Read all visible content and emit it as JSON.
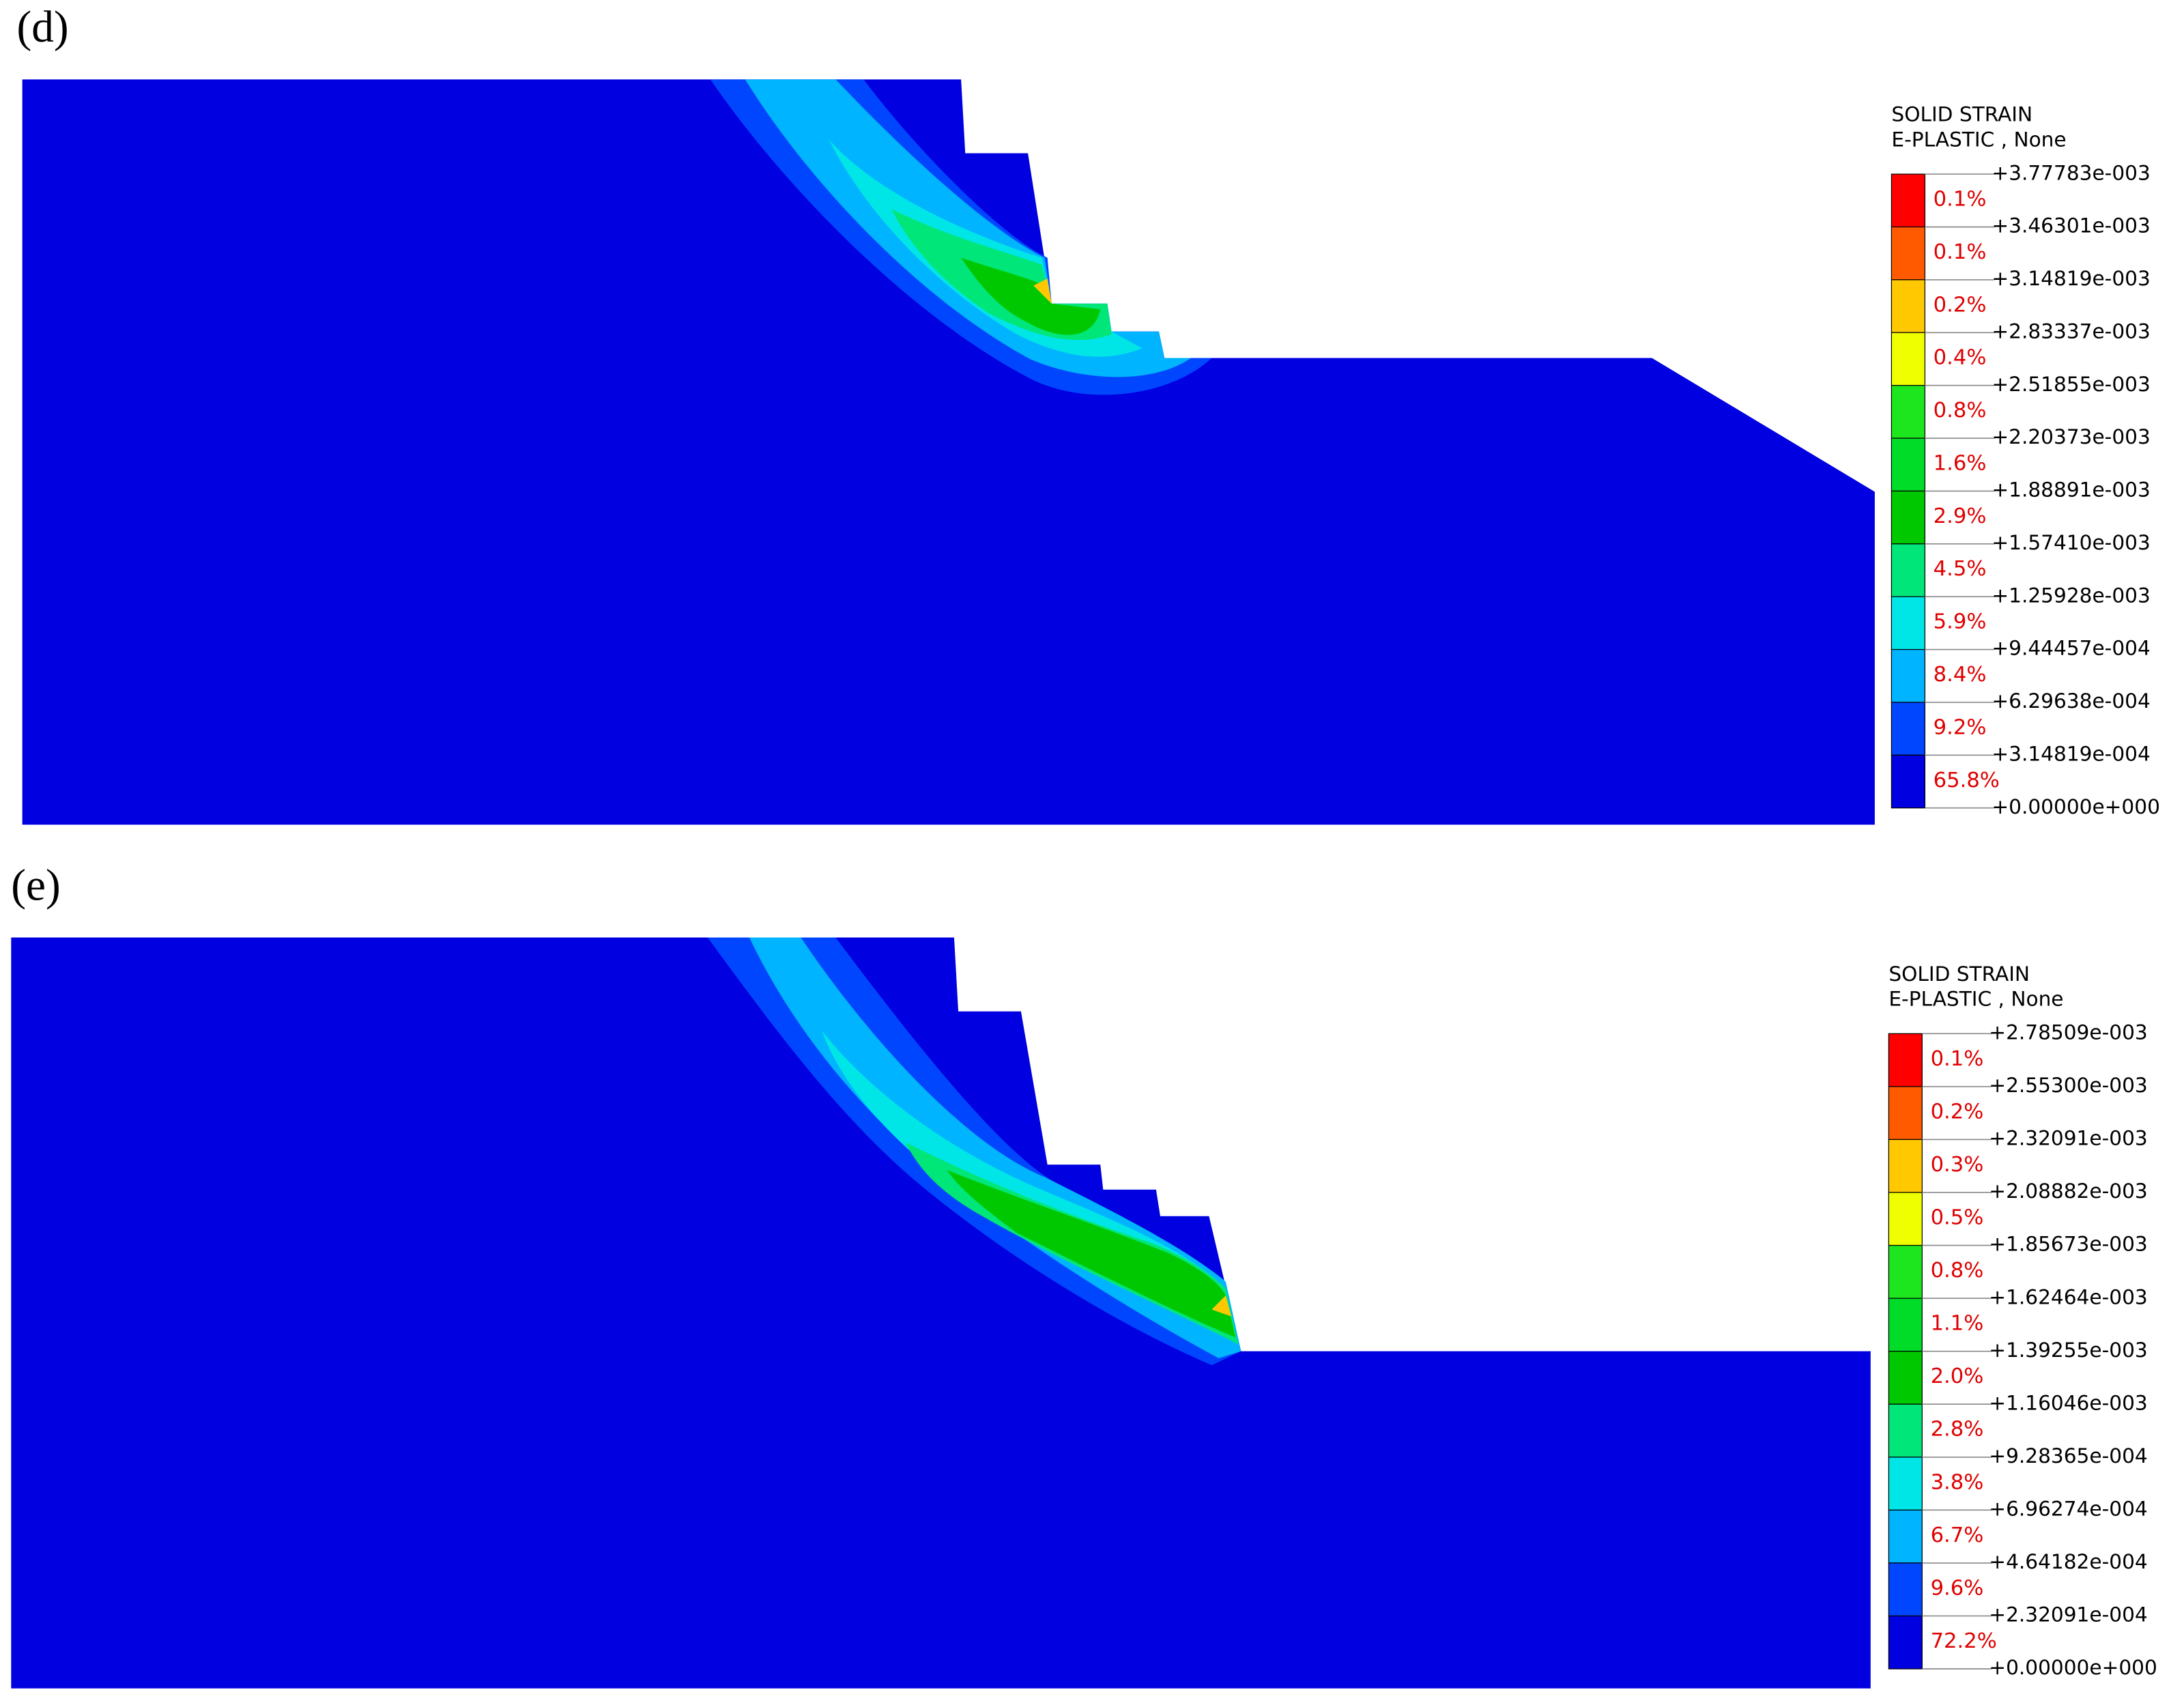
{
  "panels": [
    {
      "label": "(d)",
      "legend_title": [
        "SOLID STRAIN",
        "E-PLASTIC , None"
      ],
      "levels": [
        "+3.77783e-003",
        "+3.46301e-003",
        "+3.14819e-003",
        "+2.83337e-003",
        "+2.51855e-003",
        "+2.20373e-003",
        "+1.88891e-003",
        "+1.57410e-003",
        "+1.25928e-003",
        "+9.44457e-004",
        "+6.29638e-004",
        "+3.14819e-004",
        "+0.00000e+000"
      ],
      "percents": [
        "0.1%",
        "0.1%",
        "0.2%",
        "0.4%",
        "0.8%",
        "1.6%",
        "2.9%",
        "4.5%",
        "5.9%",
        "8.4%",
        "9.2%",
        "65.8%"
      ]
    },
    {
      "label": "(e)",
      "legend_title": [
        "SOLID STRAIN",
        "E-PLASTIC , None"
      ],
      "levels": [
        "+2.78509e-003",
        "+2.55300e-003",
        "+2.32091e-003",
        "+2.08882e-003",
        "+1.85673e-003",
        "+1.62464e-003",
        "+1.39255e-003",
        "+1.16046e-003",
        "+9.28365e-004",
        "+6.96274e-004",
        "+4.64182e-004",
        "+2.32091e-004",
        "+0.00000e+000"
      ],
      "percents": [
        "0.1%",
        "0.2%",
        "0.3%",
        "0.5%",
        "0.8%",
        "1.1%",
        "2.0%",
        "2.8%",
        "3.8%",
        "6.7%",
        "9.6%",
        "72.2%"
      ]
    }
  ],
  "band_colors": [
    "#ff0000",
    "#ff5a00",
    "#ffc800",
    "#f0ff00",
    "#1ee61e",
    "#00dc28",
    "#00c800",
    "#00e678",
    "#00e6e6",
    "#00b4ff",
    "#0046ff",
    "#0000e0"
  ]
}
